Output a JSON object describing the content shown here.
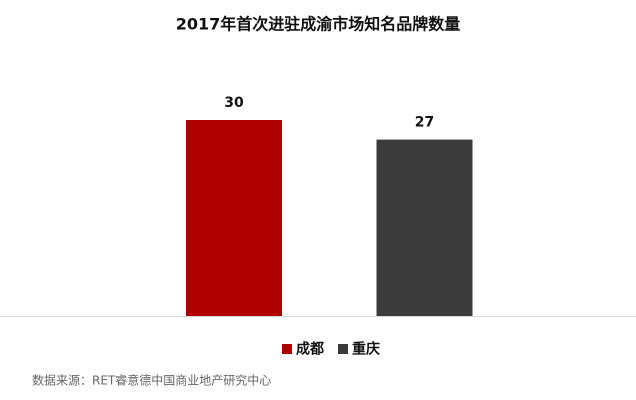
{
  "chart_data": {
    "type": "bar",
    "title": "2017年首次进驻成渝市场知名品牌数量",
    "categories": [
      "成都",
      "重庆"
    ],
    "values": [
      30,
      27
    ],
    "colors": [
      "#b00000",
      "#3b3b3b"
    ],
    "ylim": [
      0,
      30
    ],
    "legend": "bottom",
    "source": "数据来源：RET睿意德中国商业地产研究中心"
  }
}
